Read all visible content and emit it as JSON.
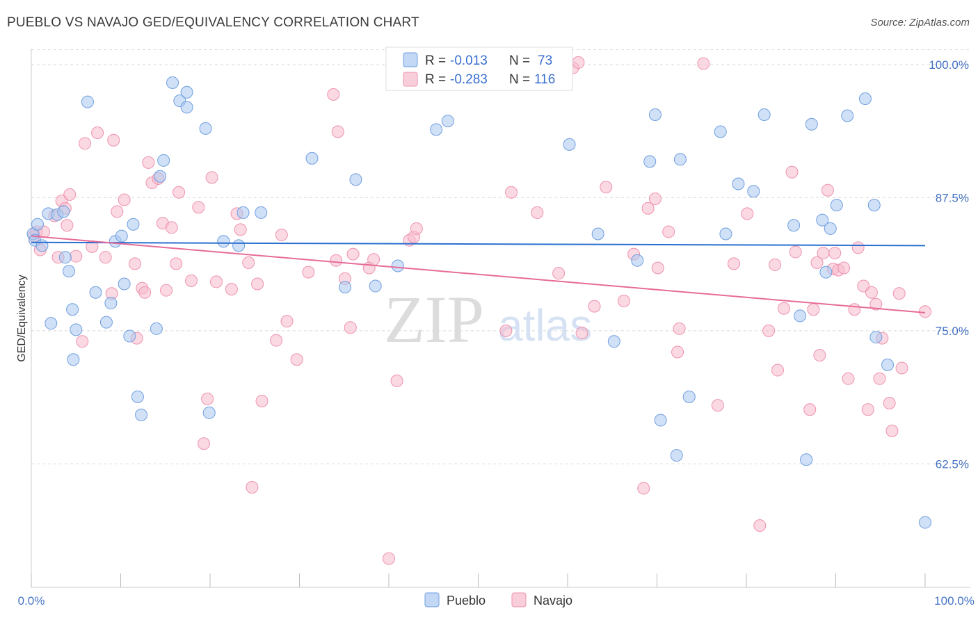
{
  "title": "PUEBLO VS NAVAJO GED/EQUIVALENCY CORRELATION CHART",
  "source": "Source: ZipAtlas.com",
  "watermark": {
    "zip": "ZIP",
    "atlas": "atlas"
  },
  "legend": {
    "rows": [
      {
        "r_label": "R = ",
        "r_value": "-0.013",
        "n_label": "N = ",
        "n_value": "73",
        "color": "#a9c8f0"
      },
      {
        "r_label": "R = ",
        "r_value": "-0.283",
        "n_label": "N = ",
        "n_value": "116",
        "color": "#f7b9cc"
      }
    ]
  },
  "bottom_legend": [
    {
      "label": "Pueblo",
      "color": "#a9c8f0"
    },
    {
      "label": "Navajo",
      "color": "#f7b9cc"
    }
  ],
  "colors": {
    "pueblo_fill": "#a9c8f0",
    "pueblo_stroke": "#6f9ee0",
    "pueblo_line": "#2a6fcf",
    "navajo_fill": "#f7b9cc",
    "navajo_stroke": "#ee92ae",
    "navajo_line": "#e76b98",
    "grid": "#d9d9d9",
    "tick_label": "#4472c4"
  },
  "chart_data": {
    "type": "scatter",
    "title": "PUEBLO VS NAVAJO GED/EQUIVALENCY CORRELATION CHART",
    "xlabel": "",
    "ylabel": "GED/Equivalency",
    "xlim": [
      0,
      100
    ],
    "ylim": [
      50.9,
      101.5
    ],
    "x_tick_labels": [
      "0.0%",
      "100.0%"
    ],
    "y_ticks": [
      62.5,
      75.0,
      87.5,
      100.0
    ],
    "y_tick_labels": [
      "62.5%",
      "75.0%",
      "87.5%",
      "100.0%"
    ],
    "grid": "horizontal dashed",
    "legend_placement": "top-center",
    "series": [
      {
        "name": "Pueblo",
        "r": -0.013,
        "n": 73,
        "trend": {
          "x": [
            0,
            100
          ],
          "y": [
            83.3,
            83.0
          ]
        },
        "points": [
          [
            0.2,
            84.1
          ],
          [
            0.4,
            83.5
          ],
          [
            0.7,
            85.0
          ],
          [
            1.2,
            83.0
          ],
          [
            1.9,
            86.0
          ],
          [
            2.2,
            75.7
          ],
          [
            2.9,
            85.9
          ],
          [
            3.6,
            86.2
          ],
          [
            3.8,
            81.9
          ],
          [
            4.2,
            80.6
          ],
          [
            4.6,
            77.0
          ],
          [
            4.7,
            72.3
          ],
          [
            5.0,
            75.1
          ],
          [
            6.3,
            96.5
          ],
          [
            7.2,
            78.6
          ],
          [
            8.4,
            75.8
          ],
          [
            8.9,
            77.6
          ],
          [
            9.4,
            83.4
          ],
          [
            10.1,
            83.9
          ],
          [
            10.4,
            79.4
          ],
          [
            11.0,
            74.5
          ],
          [
            11.4,
            85.0
          ],
          [
            11.9,
            68.8
          ],
          [
            12.3,
            67.1
          ],
          [
            14.0,
            75.2
          ],
          [
            14.4,
            89.5
          ],
          [
            14.8,
            91.0
          ],
          [
            15.8,
            98.3
          ],
          [
            16.6,
            96.6
          ],
          [
            17.4,
            97.4
          ],
          [
            17.4,
            96.0
          ],
          [
            19.5,
            94.0
          ],
          [
            19.9,
            67.3
          ],
          [
            21.5,
            83.4
          ],
          [
            23.2,
            83.0
          ],
          [
            23.7,
            86.1
          ],
          [
            25.7,
            86.1
          ],
          [
            31.4,
            91.2
          ],
          [
            35.1,
            79.1
          ],
          [
            36.3,
            89.2
          ],
          [
            38.5,
            79.2
          ],
          [
            41.0,
            81.1
          ],
          [
            45.3,
            93.9
          ],
          [
            46.6,
            94.7
          ],
          [
            60.2,
            92.5
          ],
          [
            63.4,
            84.1
          ],
          [
            65.2,
            74.0
          ],
          [
            67.8,
            81.6
          ],
          [
            69.2,
            90.9
          ],
          [
            69.8,
            95.3
          ],
          [
            70.4,
            66.6
          ],
          [
            72.2,
            63.3
          ],
          [
            72.6,
            91.1
          ],
          [
            73.6,
            68.8
          ],
          [
            77.1,
            93.7
          ],
          [
            77.7,
            84.1
          ],
          [
            79.1,
            88.8
          ],
          [
            80.8,
            88.1
          ],
          [
            82.0,
            95.3
          ],
          [
            85.3,
            84.9
          ],
          [
            86.0,
            76.4
          ],
          [
            86.7,
            62.9
          ],
          [
            87.3,
            94.4
          ],
          [
            88.5,
            85.4
          ],
          [
            88.9,
            80.5
          ],
          [
            89.4,
            84.6
          ],
          [
            90.1,
            86.8
          ],
          [
            91.3,
            95.2
          ],
          [
            93.3,
            96.8
          ],
          [
            94.3,
            86.8
          ],
          [
            94.5,
            74.4
          ],
          [
            95.8,
            71.8
          ],
          [
            100.0,
            57.0
          ]
        ]
      },
      {
        "name": "Navajo",
        "r": -0.283,
        "n": 116,
        "trend": {
          "x": [
            0,
            100
          ],
          "y": [
            83.9,
            76.7
          ]
        },
        "points": [
          [
            0.3,
            83.9
          ],
          [
            0.6,
            84.3
          ],
          [
            1.0,
            82.6
          ],
          [
            1.4,
            84.3
          ],
          [
            2.6,
            85.8
          ],
          [
            3.0,
            81.9
          ],
          [
            3.4,
            87.2
          ],
          [
            3.8,
            86.5
          ],
          [
            4.0,
            84.9
          ],
          [
            4.3,
            87.8
          ],
          [
            5.0,
            82.0
          ],
          [
            5.7,
            74.0
          ],
          [
            6.0,
            92.6
          ],
          [
            6.8,
            82.9
          ],
          [
            7.4,
            93.6
          ],
          [
            8.3,
            81.9
          ],
          [
            9.0,
            78.5
          ],
          [
            9.2,
            92.9
          ],
          [
            9.6,
            86.2
          ],
          [
            10.4,
            87.3
          ],
          [
            11.6,
            81.3
          ],
          [
            11.8,
            74.3
          ],
          [
            12.4,
            79.0
          ],
          [
            12.7,
            78.6
          ],
          [
            13.1,
            90.8
          ],
          [
            13.5,
            88.9
          ],
          [
            14.2,
            89.3
          ],
          [
            14.7,
            85.1
          ],
          [
            15.1,
            78.8
          ],
          [
            15.7,
            84.7
          ],
          [
            16.2,
            81.3
          ],
          [
            16.5,
            88.0
          ],
          [
            17.9,
            79.7
          ],
          [
            18.7,
            86.6
          ],
          [
            19.3,
            64.4
          ],
          [
            19.7,
            68.6
          ],
          [
            20.2,
            89.4
          ],
          [
            20.7,
            79.6
          ],
          [
            22.4,
            78.9
          ],
          [
            23.0,
            86.0
          ],
          [
            23.4,
            84.5
          ],
          [
            24.3,
            81.4
          ],
          [
            24.7,
            60.3
          ],
          [
            25.3,
            79.4
          ],
          [
            25.8,
            68.4
          ],
          [
            27.4,
            74.1
          ],
          [
            28.0,
            84.0
          ],
          [
            28.6,
            75.9
          ],
          [
            29.7,
            72.3
          ],
          [
            31.0,
            80.5
          ],
          [
            33.8,
            97.2
          ],
          [
            34.1,
            81.6
          ],
          [
            34.3,
            93.7
          ],
          [
            35.1,
            79.9
          ],
          [
            35.7,
            75.3
          ],
          [
            36.0,
            82.2
          ],
          [
            37.8,
            80.9
          ],
          [
            38.3,
            81.7
          ],
          [
            40.0,
            53.6
          ],
          [
            40.9,
            70.3
          ],
          [
            42.3,
            83.5
          ],
          [
            42.8,
            83.8
          ],
          [
            43.1,
            84.6
          ],
          [
            52.5,
            100.0
          ],
          [
            53.1,
            75.0
          ],
          [
            53.7,
            88.0
          ],
          [
            56.6,
            86.1
          ],
          [
            59.0,
            80.4
          ],
          [
            60.6,
            99.7
          ],
          [
            61.2,
            100.2
          ],
          [
            61.6,
            74.8
          ],
          [
            63.0,
            77.3
          ],
          [
            64.3,
            88.5
          ],
          [
            66.3,
            77.8
          ],
          [
            67.4,
            82.2
          ],
          [
            68.5,
            60.2
          ],
          [
            69.0,
            86.5
          ],
          [
            69.8,
            87.4
          ],
          [
            70.1,
            80.9
          ],
          [
            71.3,
            84.3
          ],
          [
            72.3,
            73.0
          ],
          [
            72.5,
            75.2
          ],
          [
            75.2,
            100.1
          ],
          [
            76.8,
            68.0
          ],
          [
            78.6,
            81.3
          ],
          [
            80.1,
            86.0
          ],
          [
            81.5,
            56.7
          ],
          [
            82.5,
            75.0
          ],
          [
            83.2,
            81.2
          ],
          [
            83.5,
            71.3
          ],
          [
            84.2,
            77.1
          ],
          [
            85.1,
            89.9
          ],
          [
            85.5,
            82.4
          ],
          [
            87.1,
            67.6
          ],
          [
            87.5,
            77.0
          ],
          [
            87.9,
            81.4
          ],
          [
            88.2,
            72.7
          ],
          [
            88.6,
            82.3
          ],
          [
            89.1,
            88.2
          ],
          [
            89.7,
            80.8
          ],
          [
            89.9,
            82.3
          ],
          [
            90.3,
            80.7
          ],
          [
            90.9,
            80.9
          ],
          [
            91.4,
            70.5
          ],
          [
            92.1,
            77.0
          ],
          [
            92.5,
            82.8
          ],
          [
            93.1,
            79.2
          ],
          [
            93.6,
            67.6
          ],
          [
            94.0,
            78.6
          ],
          [
            94.5,
            77.5
          ],
          [
            94.9,
            70.5
          ],
          [
            95.2,
            74.3
          ],
          [
            96.0,
            68.2
          ],
          [
            96.3,
            65.6
          ],
          [
            97.1,
            78.5
          ],
          [
            97.4,
            71.5
          ],
          [
            100.0,
            76.8
          ]
        ]
      }
    ]
  }
}
